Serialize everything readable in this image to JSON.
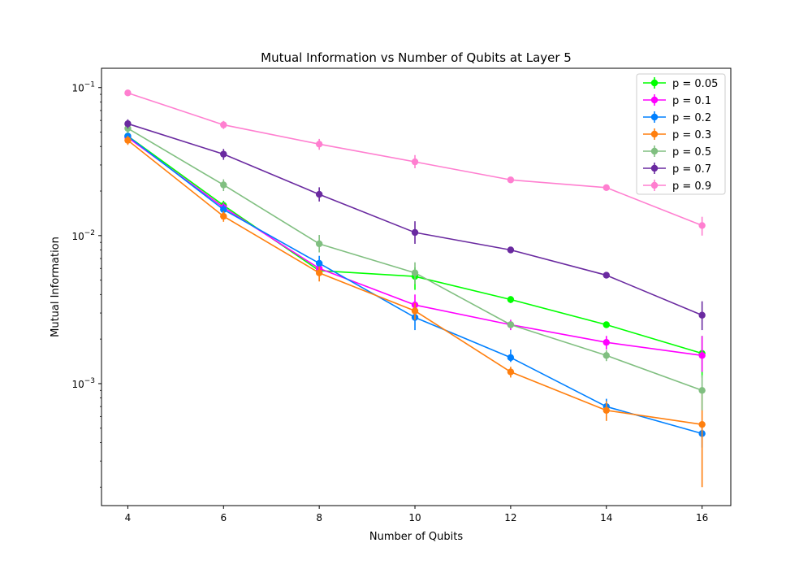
{
  "chart_data": {
    "type": "line",
    "title": "Mutual Information vs Number of Qubits at Layer 5",
    "xlabel": "Number of Qubits",
    "ylabel": "Mutual Information",
    "x": [
      4,
      6,
      8,
      10,
      12,
      14,
      16
    ],
    "x_ticks": [
      "4",
      "6",
      "8",
      "10",
      "12",
      "14",
      "16"
    ],
    "xlim": [
      3.45,
      16.6
    ],
    "yscale": "log",
    "ylim": [
      0.00015,
      0.135
    ],
    "y_ticks": [
      {
        "value": 0.001,
        "base": "10",
        "exp": "−3"
      },
      {
        "value": 0.01,
        "base": "10",
        "exp": "−2"
      },
      {
        "value": 0.1,
        "base": "10",
        "exp": "−1"
      }
    ],
    "grid": false,
    "legend_position": "top-right",
    "series": [
      {
        "name": "p = 0.05",
        "color": "#00ff00",
        "values": [
          0.047,
          0.016,
          0.0058,
          0.0053,
          0.0037,
          0.0025,
          0.0016
        ],
        "err_low": [
          0.0437,
          0.0148,
          0.0053,
          0.0043,
          0.0035,
          0.0024,
          0.0011
        ],
        "err_high": [
          0.0505,
          0.0172,
          0.0063,
          0.0061,
          0.0039,
          0.0026,
          0.0021
        ]
      },
      {
        "name": "p = 0.1",
        "color": "#ff00ff",
        "values": [
          0.046,
          0.0155,
          0.006,
          0.0034,
          0.0025,
          0.0019,
          0.00155
        ],
        "err_low": [
          0.0428,
          0.0143,
          0.0055,
          0.0029,
          0.0023,
          0.0017,
          0.0012
        ],
        "err_high": [
          0.0494,
          0.0167,
          0.0066,
          0.004,
          0.0027,
          0.0021,
          0.0021
        ]
      },
      {
        "name": "p = 0.2",
        "color": "#0080ff",
        "values": [
          0.047,
          0.015,
          0.0065,
          0.0028,
          0.0015,
          0.0007,
          0.00046
        ],
        "err_low": [
          0.0437,
          0.0138,
          0.0057,
          0.0023,
          0.0014,
          0.00063,
          0.00037
        ],
        "err_high": [
          0.0505,
          0.0162,
          0.0073,
          0.0033,
          0.0017,
          0.00079,
          0.00055
        ]
      },
      {
        "name": "p = 0.3",
        "color": "#ff7f0e",
        "values": [
          0.044,
          0.0135,
          0.0056,
          0.0031,
          0.0012,
          0.00066,
          0.00053
        ],
        "err_low": [
          0.041,
          0.0124,
          0.0049,
          0.0027,
          0.0011,
          0.00056,
          0.0002
        ],
        "err_high": [
          0.0472,
          0.0146,
          0.0062,
          0.0035,
          0.0013,
          0.00076,
          0.00086
        ]
      },
      {
        "name": "p = 0.5",
        "color": "#80bf80",
        "values": [
          0.053,
          0.022,
          0.0088,
          0.0056,
          0.0025,
          0.00155,
          0.0009
        ],
        "err_low": [
          0.0493,
          0.02,
          0.0077,
          0.0047,
          0.0024,
          0.00142,
          0.00066
        ],
        "err_high": [
          0.0567,
          0.024,
          0.0101,
          0.0066,
          0.0026,
          0.00168,
          0.00114
        ]
      },
      {
        "name": "p = 0.7",
        "color": "#6a2aa0",
        "values": [
          0.057,
          0.0355,
          0.019,
          0.0105,
          0.008,
          0.0054,
          0.0029
        ],
        "err_low": [
          0.053,
          0.0325,
          0.017,
          0.0088,
          0.0077,
          0.0052,
          0.0023
        ],
        "err_high": [
          0.061,
          0.0385,
          0.0212,
          0.0125,
          0.0083,
          0.0056,
          0.0036
        ]
      },
      {
        "name": "p = 0.9",
        "color": "#ff7fd0",
        "values": [
          0.092,
          0.056,
          0.0415,
          0.0315,
          0.0238,
          0.0211,
          0.0117
        ],
        "err_low": [
          0.088,
          0.0525,
          0.038,
          0.0285,
          0.0233,
          0.0207,
          0.01
        ],
        "err_high": [
          0.096,
          0.0595,
          0.045,
          0.035,
          0.0243,
          0.0215,
          0.0134
        ]
      }
    ]
  }
}
